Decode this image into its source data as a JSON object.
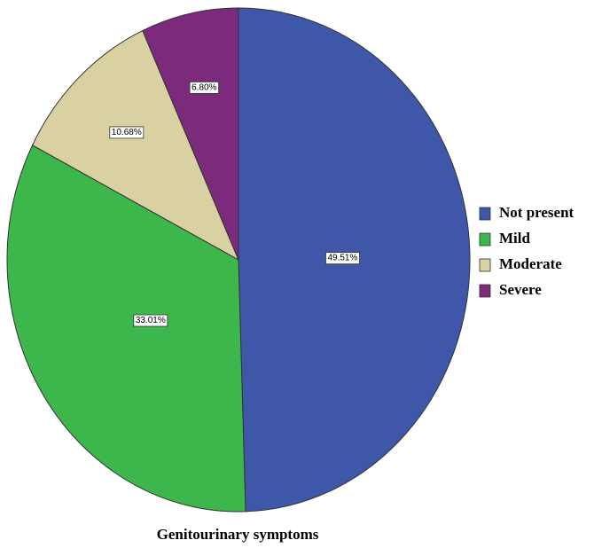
{
  "chart_data": {
    "type": "pie",
    "title": "Genitourinary symptoms",
    "categories": [
      "Not present",
      "Mild",
      "Moderate",
      "Severe"
    ],
    "values": [
      49.51,
      33.01,
      10.68,
      6.8
    ],
    "value_labels": [
      "49.51%",
      "33.01%",
      "10.68%",
      "6.80%"
    ],
    "colors": [
      "#3f57a9",
      "#3db64b",
      "#d9d1a1",
      "#7c2a7c"
    ],
    "legend": "right"
  }
}
